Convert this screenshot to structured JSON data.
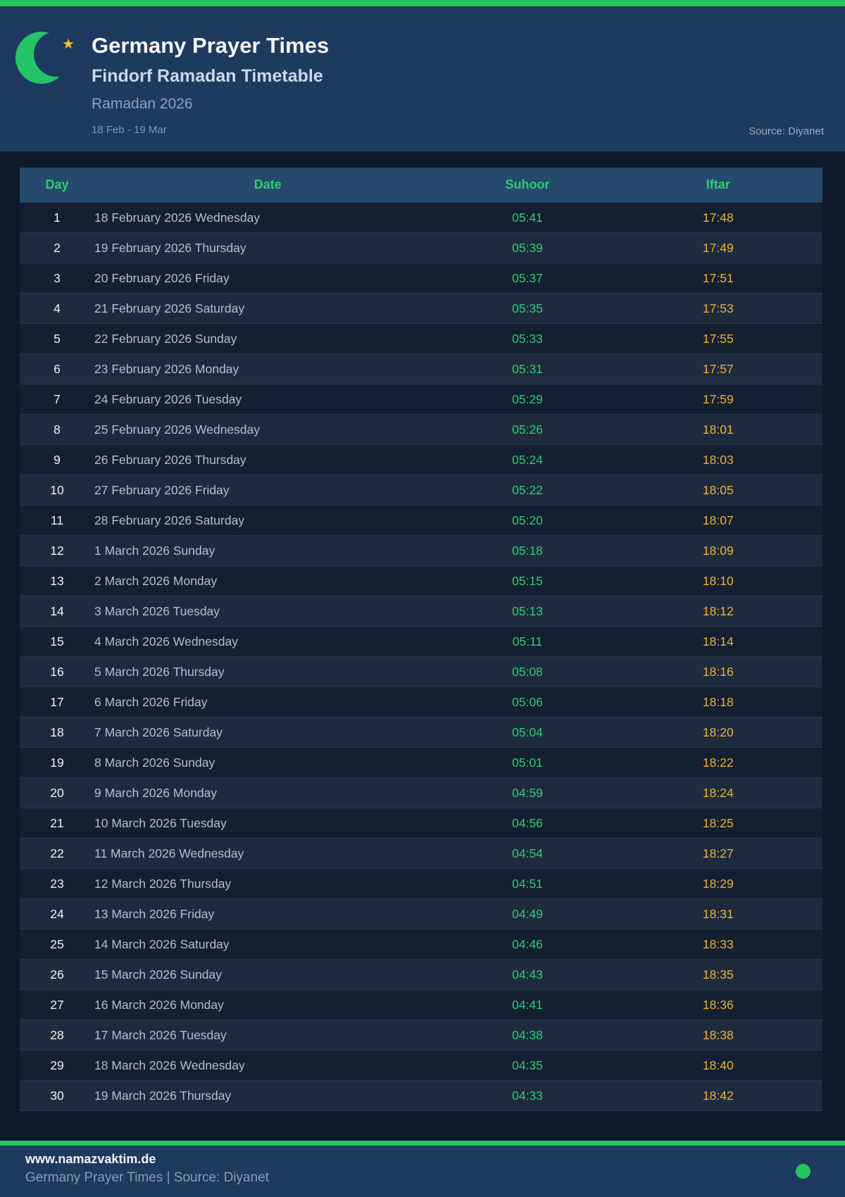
{
  "header": {
    "title": "Germany Prayer Times",
    "subtitle": "Findorf Ramadan Timetable",
    "season": "Ramadan 2026",
    "date_range": "18 Feb - 19 Mar",
    "source": "Source: Diyanet"
  },
  "table": {
    "columns": [
      "Day",
      "Date",
      "Suhoor",
      "Iftar"
    ],
    "rows": [
      {
        "day": "1",
        "date": "18 February 2026 Wednesday",
        "suhoor": "05:41",
        "iftar": "17:48"
      },
      {
        "day": "2",
        "date": "19 February 2026 Thursday",
        "suhoor": "05:39",
        "iftar": "17:49"
      },
      {
        "day": "3",
        "date": "20 February 2026 Friday",
        "suhoor": "05:37",
        "iftar": "17:51"
      },
      {
        "day": "4",
        "date": "21 February 2026 Saturday",
        "suhoor": "05:35",
        "iftar": "17:53"
      },
      {
        "day": "5",
        "date": "22 February 2026 Sunday",
        "suhoor": "05:33",
        "iftar": "17:55"
      },
      {
        "day": "6",
        "date": "23 February 2026 Monday",
        "suhoor": "05:31",
        "iftar": "17:57"
      },
      {
        "day": "7",
        "date": "24 February 2026 Tuesday",
        "suhoor": "05:29",
        "iftar": "17:59"
      },
      {
        "day": "8",
        "date": "25 February 2026 Wednesday",
        "suhoor": "05:26",
        "iftar": "18:01"
      },
      {
        "day": "9",
        "date": "26 February 2026 Thursday",
        "suhoor": "05:24",
        "iftar": "18:03"
      },
      {
        "day": "10",
        "date": "27 February 2026 Friday",
        "suhoor": "05:22",
        "iftar": "18:05"
      },
      {
        "day": "11",
        "date": "28 February 2026 Saturday",
        "suhoor": "05:20",
        "iftar": "18:07"
      },
      {
        "day": "12",
        "date": "1 March 2026 Sunday",
        "suhoor": "05:18",
        "iftar": "18:09"
      },
      {
        "day": "13",
        "date": "2 March 2026 Monday",
        "suhoor": "05:15",
        "iftar": "18:10"
      },
      {
        "day": "14",
        "date": "3 March 2026 Tuesday",
        "suhoor": "05:13",
        "iftar": "18:12"
      },
      {
        "day": "15",
        "date": "4 March 2026 Wednesday",
        "suhoor": "05:11",
        "iftar": "18:14"
      },
      {
        "day": "16",
        "date": "5 March 2026 Thursday",
        "suhoor": "05:08",
        "iftar": "18:16"
      },
      {
        "day": "17",
        "date": "6 March 2026 Friday",
        "suhoor": "05:06",
        "iftar": "18:18"
      },
      {
        "day": "18",
        "date": "7 March 2026 Saturday",
        "suhoor": "05:04",
        "iftar": "18:20"
      },
      {
        "day": "19",
        "date": "8 March 2026 Sunday",
        "suhoor": "05:01",
        "iftar": "18:22"
      },
      {
        "day": "20",
        "date": "9 March 2026 Monday",
        "suhoor": "04:59",
        "iftar": "18:24"
      },
      {
        "day": "21",
        "date": "10 March 2026 Tuesday",
        "suhoor": "04:56",
        "iftar": "18:25"
      },
      {
        "day": "22",
        "date": "11 March 2026 Wednesday",
        "suhoor": "04:54",
        "iftar": "18:27"
      },
      {
        "day": "23",
        "date": "12 March 2026 Thursday",
        "suhoor": "04:51",
        "iftar": "18:29"
      },
      {
        "day": "24",
        "date": "13 March 2026 Friday",
        "suhoor": "04:49",
        "iftar": "18:31"
      },
      {
        "day": "25",
        "date": "14 March 2026 Saturday",
        "suhoor": "04:46",
        "iftar": "18:33"
      },
      {
        "day": "26",
        "date": "15 March 2026 Sunday",
        "suhoor": "04:43",
        "iftar": "18:35"
      },
      {
        "day": "27",
        "date": "16 March 2026 Monday",
        "suhoor": "04:41",
        "iftar": "18:36"
      },
      {
        "day": "28",
        "date": "17 March 2026 Tuesday",
        "suhoor": "04:38",
        "iftar": "18:38"
      },
      {
        "day": "29",
        "date": "18 March 2026 Wednesday",
        "suhoor": "04:35",
        "iftar": "18:40"
      },
      {
        "day": "30",
        "date": "19 March 2026 Thursday",
        "suhoor": "04:33",
        "iftar": "18:42"
      }
    ]
  },
  "footer": {
    "website": "www.namazvaktim.de",
    "tagline": "Germany Prayer Times | Source: Diyanet"
  },
  "icons": {
    "moon": "crescent-moon-icon",
    "star": "star-icon",
    "dot": "green-dot-icon"
  },
  "colors": {
    "accent_green": "#22c55e",
    "suhoor_green": "#2ecc71",
    "iftar_amber": "#e8b339",
    "header_blue": "#1e3a5f",
    "page_navy": "#0e1a2b",
    "row_dark": "#141f31",
    "row_light": "#1e2b3f"
  }
}
